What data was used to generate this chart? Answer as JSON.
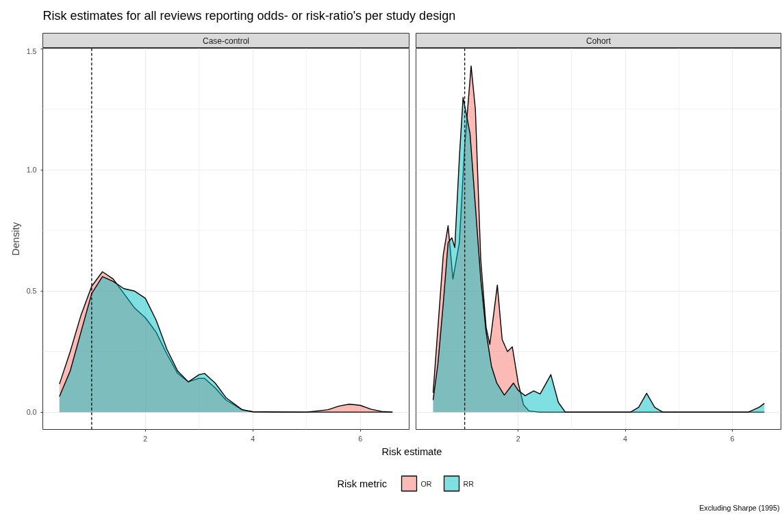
{
  "chart_data": [
    {
      "type": "area",
      "title": "Risk estimates for all reviews reporting odds- or risk-ratio's per study design",
      "subtitle": "Case-control",
      "xlabel": "Risk estimate",
      "ylabel": "Density",
      "legend_title": "Risk metric",
      "legend": "bottom",
      "annotations": [
        "Excluding Sharpe (1995)"
      ],
      "xlim": [
        0.09,
        6.91
      ],
      "ylim": [
        -0.0716,
        1.503
      ],
      "xticks": [
        2,
        4,
        6
      ],
      "yticks": [
        {
          "value": 0,
          "label": "0.0"
        },
        {
          "value": 0.5,
          "label": "0.5"
        },
        {
          "value": 1,
          "label": "1.0"
        },
        {
          "value": 1.5,
          "label": "1.5"
        }
      ],
      "grid": true,
      "ref_lines": [
        {
          "axis": "x",
          "value": 1,
          "label": null,
          "line_style": "dashed",
          "color": "#000000"
        }
      ],
      "series": [
        {
          "name": "OR",
          "color": "#f8766d",
          "x": [
            0.4,
            0.6,
            0.8,
            1.0,
            1.2,
            1.4,
            1.6,
            1.8,
            2.0,
            2.2,
            2.4,
            2.6,
            2.8,
            3.0,
            3.1,
            3.3,
            3.5,
            3.8,
            4.0,
            4.5,
            5.0,
            5.4,
            5.6,
            5.8,
            6.0,
            6.2,
            6.4,
            6.6
          ],
          "values": [
            0.116,
            0.25,
            0.4,
            0.52,
            0.58,
            0.55,
            0.49,
            0.43,
            0.39,
            0.33,
            0.24,
            0.16,
            0.125,
            0.14,
            0.14,
            0.1,
            0.05,
            0.01,
            0.002,
            0,
            0,
            0.01,
            0.025,
            0.033,
            0.028,
            0.012,
            0.003,
            0
          ]
        },
        {
          "name": "RR",
          "color": "#00bfc4",
          "x": [
            0.4,
            0.6,
            0.8,
            1.0,
            1.2,
            1.4,
            1.6,
            1.8,
            2.0,
            2.2,
            2.4,
            2.6,
            2.8,
            3.0,
            3.1,
            3.3,
            3.5,
            3.8,
            4.0,
            5.0,
            6.6
          ],
          "values": [
            0.065,
            0.17,
            0.33,
            0.49,
            0.56,
            0.54,
            0.51,
            0.5,
            0.47,
            0.38,
            0.26,
            0.17,
            0.125,
            0.155,
            0.16,
            0.12,
            0.06,
            0.01,
            0.001,
            0,
            0
          ]
        }
      ]
    },
    {
      "type": "area",
      "subtitle": "Cohort",
      "tick_labels": "x",
      "xlim": [
        0.09,
        6.91
      ],
      "ylim": [
        -0.0716,
        1.503
      ],
      "xticks": [
        2,
        4,
        6
      ],
      "yticks": [
        0,
        0.5,
        1,
        1.5
      ],
      "grid": true,
      "ref_lines": [
        {
          "axis": "x",
          "value": 1,
          "label": null,
          "line_style": "dashed",
          "color": "#000000"
        }
      ],
      "series": [
        {
          "color": "#f8766d",
          "x": [
            0.41,
            0.5,
            0.6,
            0.69,
            0.78,
            0.9,
            1.0,
            1.12,
            1.2,
            1.3,
            1.4,
            1.47,
            1.55,
            1.61,
            1.7,
            1.8,
            1.89,
            2.0,
            2.1,
            2.2,
            2.4,
            6.6
          ],
          "values": [
            0.08,
            0.35,
            0.65,
            0.77,
            0.55,
            0.7,
            1.1,
            1.43,
            1.25,
            0.63,
            0.35,
            0.28,
            0.42,
            0.525,
            0.3,
            0.25,
            0.27,
            0.12,
            0.03,
            0.005,
            0,
            0
          ]
        },
        {
          "color": "#00bfc4",
          "x": [
            0.41,
            0.5,
            0.6,
            0.69,
            0.76,
            0.815,
            0.9,
            0.97,
            1.1,
            1.2,
            1.3,
            1.4,
            1.5,
            1.6,
            1.74,
            1.91,
            2.0,
            2.13,
            2.29,
            2.41,
            2.61,
            2.75,
            2.88,
            4.1,
            4.25,
            4.4,
            4.55,
            4.7,
            6.3,
            6.5,
            6.6
          ],
          "values": [
            0.05,
            0.2,
            0.45,
            0.7,
            0.72,
            0.68,
            1.05,
            1.3,
            1.15,
            0.85,
            0.55,
            0.33,
            0.19,
            0.12,
            0.07,
            0.12,
            0.09,
            0.068,
            0.088,
            0.075,
            0.155,
            0.04,
            0,
            0,
            0.02,
            0.078,
            0.02,
            0,
            0,
            0.02,
            0.036
          ]
        }
      ]
    }
  ]
}
